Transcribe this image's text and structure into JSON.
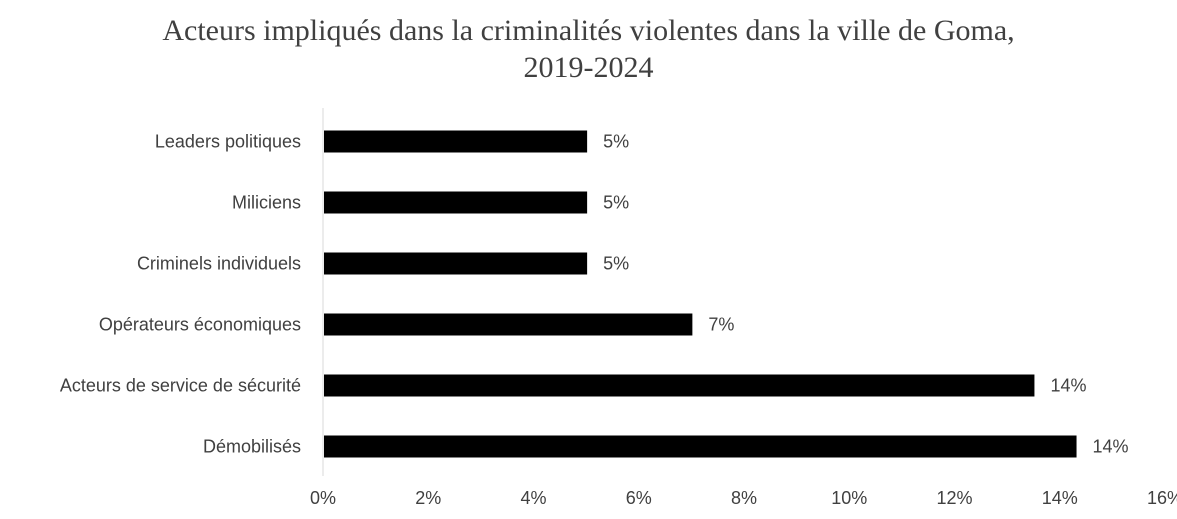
{
  "chart_data": {
    "type": "bar",
    "orientation": "horizontal",
    "title_lines": [
      "Acteurs impliqués dans la criminalités violentes dans la ville de Goma,",
      "2019-2024"
    ],
    "categories": [
      "Leaders politiques",
      "Miliciens",
      "Criminels individuels",
      "Opérateurs économiques",
      "Acteurs de service de sécurité",
      "Démobilisés"
    ],
    "values": [
      5,
      5,
      5,
      7,
      13.5,
      14.3
    ],
    "data_labels": [
      "5%",
      "5%",
      "5%",
      "7%",
      "14%",
      "14%"
    ],
    "xlim": [
      0,
      16
    ],
    "x_ticks": [
      "0%",
      "2%",
      "4%",
      "6%",
      "8%",
      "10%",
      "12%",
      "14%",
      "16%"
    ],
    "bar_color": "#000000",
    "grid": false,
    "legend": "none"
  }
}
